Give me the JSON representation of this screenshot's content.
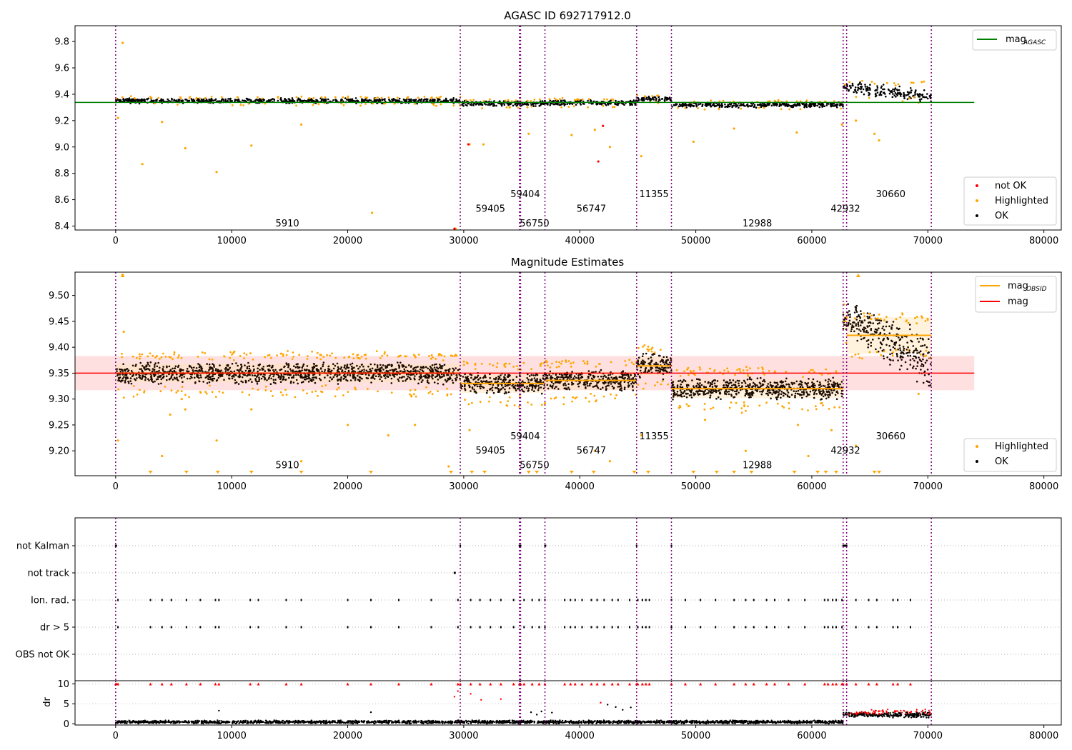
{
  "chart_data": [
    {
      "type": "scatter",
      "title": "AGASC ID 692717912.0",
      "xlim": [
        -3500,
        81500
      ],
      "ylim": [
        8.37,
        9.92
      ],
      "xticks": [
        0,
        10000,
        20000,
        30000,
        40000,
        50000,
        60000,
        70000,
        80000
      ],
      "yticks": [
        8.4,
        8.6,
        8.8,
        9.0,
        9.2,
        9.4,
        9.6,
        9.8
      ],
      "ytick_labels": [
        "8.4",
        "8.6",
        "8.8",
        "9.0",
        "9.2",
        "9.4",
        "9.6",
        "9.8"
      ],
      "mag_agasc": 9.338,
      "legend_top": [
        {
          "label": "mag",
          "sub": "AGASC",
          "color": "#008000"
        }
      ],
      "legend_bottom": [
        {
          "label": "not OK",
          "color": "#ff0000"
        },
        {
          "label": "Highlighted",
          "color": "#ffa500"
        },
        {
          "label": "OK",
          "color": "#000000"
        }
      ],
      "observations": [
        {
          "obsid": "5910",
          "start": 0,
          "end": 29700,
          "mag": 9.35,
          "label_x": 14800,
          "label_y": 8.42
        },
        {
          "obsid": "59405",
          "start": 29700,
          "end": 34800,
          "mag": 9.33,
          "label_x": 32300,
          "label_y": 8.53
        },
        {
          "obsid": "59404",
          "start": 34800,
          "end": 34900,
          "mag": 9.33,
          "label_x": 35300,
          "label_y": 8.64
        },
        {
          "obsid": "56750",
          "start": 34900,
          "end": 37000,
          "mag": 9.33,
          "label_x": 36100,
          "label_y": 8.42
        },
        {
          "obsid": "56747",
          "start": 37000,
          "end": 44900,
          "mag": 9.336,
          "label_x": 41000,
          "label_y": 8.53
        },
        {
          "obsid": "11355",
          "start": 44900,
          "end": 47900,
          "mag": 9.364,
          "label_x": 46400,
          "label_y": 8.64
        },
        {
          "obsid": "12988",
          "start": 47900,
          "end": 62700,
          "mag": 9.32,
          "label_x": 55300,
          "label_y": 8.42
        },
        {
          "obsid": "42932",
          "start": 62700,
          "end": 63000,
          "mag": 9.45,
          "label_x": 62900,
          "label_y": 8.53
        },
        {
          "obsid": "30660",
          "start": 63000,
          "end": 70300,
          "mag": 9.423,
          "label_x": 66800,
          "label_y": 8.64
        }
      ],
      "boundaries": [
        0,
        29700,
        34800,
        34900,
        37000,
        44900,
        47900,
        62700,
        63000,
        70300
      ],
      "outliers_highlighted": [
        [
          200,
          9.22
        ],
        [
          600,
          9.79
        ],
        [
          2300,
          8.87
        ],
        [
          4000,
          9.19
        ],
        [
          6000,
          8.99
        ],
        [
          8700,
          8.81
        ],
        [
          11700,
          9.01
        ],
        [
          16000,
          9.17
        ],
        [
          22100,
          8.5
        ],
        [
          29300,
          8.38
        ],
        [
          30500,
          9.02
        ],
        [
          31700,
          9.02
        ],
        [
          35600,
          9.1
        ],
        [
          39300,
          9.09
        ],
        [
          41300,
          9.13
        ],
        [
          42600,
          9.0
        ],
        [
          45300,
          8.93
        ],
        [
          49800,
          9.04
        ],
        [
          53300,
          9.14
        ],
        [
          58700,
          9.11
        ],
        [
          62600,
          9.17
        ],
        [
          63800,
          9.2
        ],
        [
          65400,
          9.1
        ],
        [
          65800,
          9.05
        ]
      ],
      "outliers_notok": [
        [
          30400,
          9.02
        ],
        [
          41600,
          8.89
        ],
        [
          42000,
          9.16
        ],
        [
          29200,
          8.38
        ]
      ]
    },
    {
      "type": "scatter",
      "title": "Magnitude Estimates",
      "xlim": [
        -3500,
        81500
      ],
      "ylim": [
        9.152,
        9.545
      ],
      "xticks": [
        0,
        10000,
        20000,
        30000,
        40000,
        50000,
        60000,
        70000,
        80000
      ],
      "yticks": [
        9.2,
        9.25,
        9.3,
        9.35,
        9.4,
        9.45,
        9.5
      ],
      "ytick_labels": [
        "9.20",
        "9.25",
        "9.30",
        "9.35",
        "9.40",
        "9.45",
        "9.50"
      ],
      "mag": 9.35,
      "mag_band": [
        9.317,
        9.383
      ],
      "legend_top": [
        {
          "label": "mag",
          "sub": "OBSID",
          "color": "#ffa500"
        },
        {
          "label": "mag",
          "sub": "",
          "color": "#ff0000"
        }
      ],
      "legend_bottom": [
        {
          "label": "Highlighted",
          "color": "#ffa500"
        },
        {
          "label": "OK",
          "color": "#000000"
        }
      ],
      "outliers_highlighted": [
        [
          200,
          9.22
        ],
        [
          600,
          9.54
        ],
        [
          700,
          9.43
        ],
        [
          4000,
          9.19
        ],
        [
          4700,
          9.27
        ],
        [
          5700,
          9.3
        ],
        [
          6000,
          9.28
        ],
        [
          8700,
          9.22
        ],
        [
          11700,
          9.28
        ],
        [
          16000,
          9.18
        ],
        [
          20000,
          9.25
        ],
        [
          23500,
          9.23
        ],
        [
          25800,
          9.25
        ],
        [
          28700,
          9.17
        ],
        [
          30500,
          9.24
        ],
        [
          41300,
          9.2
        ],
        [
          42600,
          9.18
        ],
        [
          45300,
          9.23
        ],
        [
          50800,
          9.26
        ],
        [
          54300,
          9.2
        ],
        [
          58800,
          9.25
        ],
        [
          59700,
          9.19
        ],
        [
          61700,
          9.24
        ],
        [
          63800,
          9.21
        ],
        [
          69200,
          9.31
        ]
      ],
      "arrows_low": [
        3000,
        6100,
        8800,
        11700,
        16000,
        22000,
        28900,
        30700,
        31800,
        35600,
        36300,
        39300,
        41200,
        44700,
        45900,
        49800,
        51800,
        53300,
        54800,
        58500,
        60500,
        61200,
        62100,
        65400,
        65800
      ]
    },
    {
      "type": "scatter",
      "xlim": [
        -3500,
        81500
      ],
      "categories": [
        "not Kalman",
        "not track",
        "Ion. rad.",
        "dr > 5",
        "OBS not OK"
      ],
      "flag_points": {
        "not Kalman": [
          0,
          50,
          29700,
          34800,
          34850,
          34900,
          37000,
          37050,
          44900,
          47900,
          62700,
          62800,
          62900,
          63000
        ],
        "not track": [
          29200,
          29250
        ],
        "Ion. rad.": [
          200,
          3000,
          4000,
          4800,
          6100,
          7300,
          8600,
          8900,
          11600,
          12300,
          14700,
          16000,
          20000,
          22000,
          24400,
          27200,
          29500,
          30600,
          31400,
          32300,
          33200,
          34300,
          35200,
          35900,
          36500,
          37000,
          38700,
          39200,
          39600,
          40200,
          41000,
          41500,
          42100,
          42800,
          43300,
          44300,
          45000,
          45400,
          45700,
          46000,
          47900,
          49100,
          50400,
          51700,
          53300,
          54300,
          55000,
          56100,
          56800,
          58000,
          59400,
          61100,
          61400,
          61800,
          62100,
          62600,
          63800,
          64900,
          65600,
          67000,
          67400,
          68500
        ],
        "dr > 5": [
          200,
          3000,
          4000,
          4800,
          6100,
          7300,
          8600,
          8900,
          11600,
          12300,
          14700,
          16000,
          20000,
          22000,
          24400,
          27200,
          29500,
          30600,
          31400,
          32300,
          33200,
          34300,
          35200,
          35900,
          36500,
          37000,
          38700,
          39200,
          39600,
          40200,
          41000,
          41500,
          42100,
          42800,
          43300,
          44300,
          45000,
          45400,
          45700,
          46000,
          47900,
          49100,
          50400,
          51700,
          53300,
          54300,
          55000,
          56100,
          56800,
          58000,
          59400,
          61100,
          61400,
          61800,
          62100,
          62600,
          63800,
          64900,
          65600,
          67000,
          67400,
          68500
        ],
        "OBS not OK": []
      },
      "boundaries": [
        0,
        29700,
        34800,
        34900,
        37000,
        44900,
        47900,
        62700,
        63000,
        70300
      ]
    },
    {
      "type": "scatter",
      "ylabel": "dr",
      "xlim": [
        -3500,
        81500
      ],
      "ylim": [
        -0.3,
        10.8
      ],
      "xticks": [
        0,
        10000,
        20000,
        30000,
        40000,
        50000,
        60000,
        70000,
        80000
      ],
      "yticks": [
        0,
        5,
        10
      ],
      "capped_points": [
        0,
        100,
        200,
        3000,
        4000,
        4800,
        6100,
        7300,
        8600,
        8900,
        11600,
        12300,
        14700,
        16000,
        20000,
        22000,
        24400,
        27200,
        29500,
        29700,
        30600,
        31400,
        32300,
        33200,
        34300,
        34800,
        34850,
        34900,
        35200,
        35900,
        36500,
        37000,
        38700,
        39200,
        39600,
        40200,
        41000,
        41500,
        42100,
        42800,
        43300,
        44300,
        44900,
        45000,
        45400,
        45700,
        46000,
        47900,
        49100,
        50400,
        51700,
        53300,
        54300,
        55000,
        56100,
        56800,
        58000,
        59400,
        61100,
        61400,
        61800,
        62100,
        62600,
        62700,
        63000,
        63800,
        64900,
        65600,
        67000,
        67400,
        68500
      ],
      "scattered_points": [
        [
          29200,
          6.8
        ],
        [
          29500,
          8.2
        ],
        [
          30600,
          7.5
        ],
        [
          31500,
          6.0
        ],
        [
          33200,
          6.2
        ],
        [
          41800,
          5.3
        ],
        [
          42400,
          4.8
        ],
        [
          43100,
          4.2
        ],
        [
          43700,
          3.5
        ],
        [
          44400,
          4.1
        ],
        [
          8900,
          3.3
        ],
        [
          22000,
          2.9
        ],
        [
          35800,
          2.9
        ],
        [
          36300,
          2.3
        ],
        [
          36700,
          3.1
        ],
        [
          37600,
          2.8
        ]
      ],
      "dr_levels": [
        {
          "start": 0,
          "end": 62700,
          "value": 0.5
        },
        {
          "start": 62700,
          "end": 70300,
          "value": 2.0
        }
      ]
    }
  ]
}
